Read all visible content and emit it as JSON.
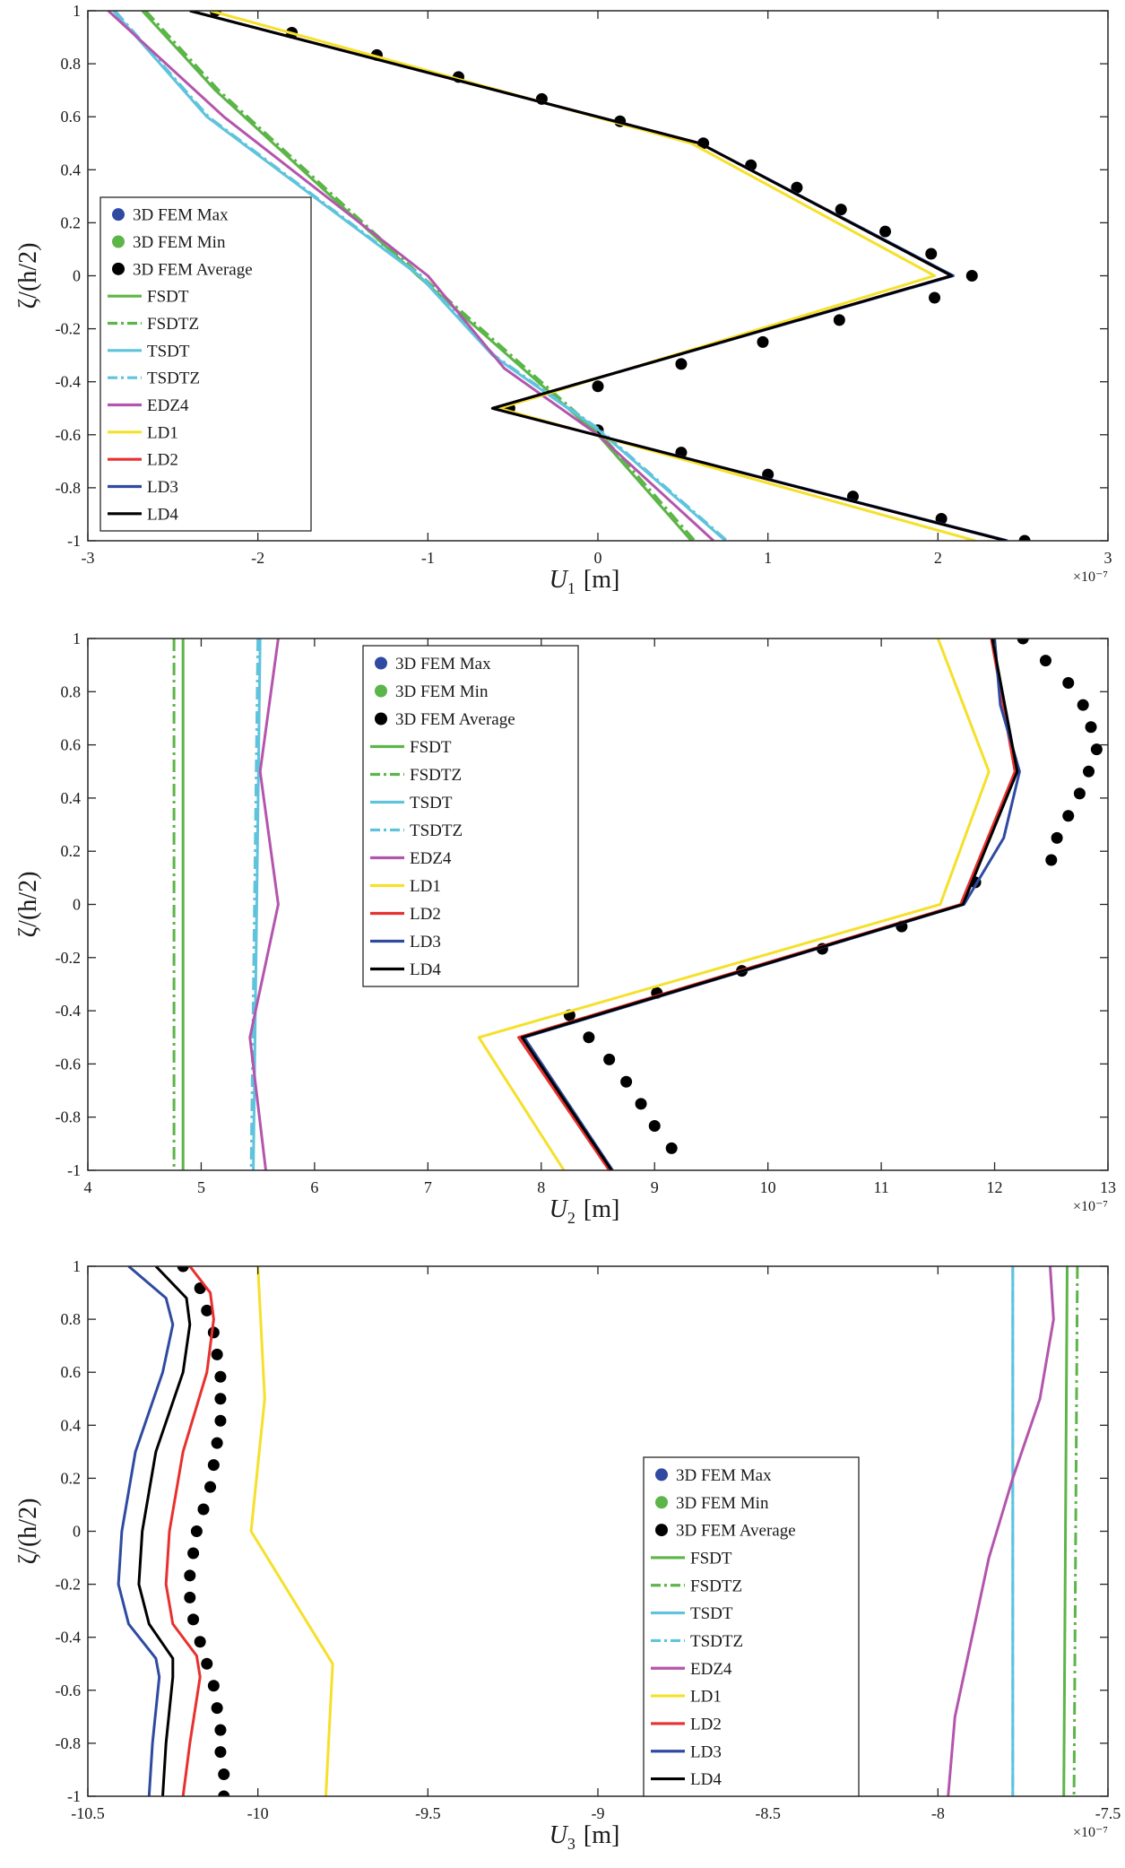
{
  "chart_data": [
    {
      "type": "line",
      "xlabel": "U1 [m]",
      "xlabel_main": "U",
      "xlabel_sub": "1",
      "xlabel_unit": "[m]",
      "ylabel": "ζ/(h/2)",
      "xlim": [
        -3,
        3
      ],
      "ylim": [
        -1,
        1
      ],
      "xticks": [
        -3,
        -2,
        -1,
        0,
        1,
        2,
        3
      ],
      "yticks": [
        1,
        0.8,
        0.6,
        0.4,
        0.2,
        0,
        -0.2,
        -0.4,
        -0.6,
        -0.8,
        -1
      ],
      "xtick_labels": [
        "-3",
        "-2",
        "-1",
        "0",
        "1",
        "2",
        "3"
      ],
      "ytick_labels": [
        "1",
        "0.8",
        "0.6",
        "0.4",
        "0.2",
        "0",
        "-0.2",
        "-0.4",
        "-0.6",
        "-0.8",
        "-1"
      ],
      "exponent_label": "×10⁻⁷",
      "grid": false,
      "legend_position": "middle-left",
      "legend": [
        "3D FEM Max",
        "3D FEM Min",
        "3D FEM Average",
        "FSDT",
        "FSDTZ",
        "TSDT",
        "TSDTZ",
        "EDZ4",
        "LD1",
        "LD2",
        "LD3",
        "LD4"
      ],
      "series": [
        {
          "name": "3D FEM Average",
          "style": "dots",
          "color": "#000000",
          "x": [
            -2.25,
            -1.8,
            -1.3,
            -0.82,
            -0.33,
            0.13,
            0.62,
            0.9,
            1.17,
            1.43,
            1.69,
            1.96,
            2.2,
            1.98,
            1.42,
            0.97,
            0.49,
            0.0,
            -0.52,
            0.0,
            0.49,
            1.0,
            1.5,
            2.02,
            2.51
          ],
          "y": [
            1.0,
            0.917,
            0.833,
            0.75,
            0.667,
            0.583,
            0.5,
            0.417,
            0.333,
            0.25,
            0.167,
            0.083,
            0.0,
            -0.083,
            -0.167,
            -0.25,
            -0.333,
            -0.417,
            -0.5,
            -0.583,
            -0.667,
            -0.75,
            -0.833,
            -0.917,
            -1.0
          ]
        },
        {
          "name": "FSDT",
          "style": "solid",
          "color": "#5cb548",
          "x": [
            -2.68,
            -2.25,
            -1.06,
            0.0,
            0.55
          ],
          "y": [
            1.0,
            0.7,
            0.0,
            -0.6,
            -1.0
          ]
        },
        {
          "name": "FSDTZ",
          "style": "dashdot",
          "color": "#5cb548",
          "x": [
            -2.66,
            -2.23,
            -1.04,
            0.02,
            0.57
          ],
          "y": [
            1.0,
            0.7,
            0.0,
            -0.6,
            -1.0
          ]
        },
        {
          "name": "TSDT",
          "style": "solid",
          "color": "#5fc3dc",
          "x": [
            -2.85,
            -2.3,
            -1.05,
            -0.62,
            0.0,
            0.75
          ],
          "y": [
            1.0,
            0.6,
            0.0,
            -0.3,
            -0.58,
            -1.0
          ]
        },
        {
          "name": "TSDTZ",
          "style": "dashdot",
          "color": "#5fc3dc",
          "x": [
            -2.84,
            -2.29,
            -1.04,
            -0.61,
            0.01,
            0.76
          ],
          "y": [
            1.0,
            0.6,
            0.0,
            -0.3,
            -0.58,
            -1.0
          ]
        },
        {
          "name": "EDZ4",
          "style": "solid",
          "color": "#b455ad",
          "x": [
            -2.88,
            -2.2,
            -1.0,
            -0.55,
            0.0,
            0.68
          ],
          "y": [
            1.0,
            0.6,
            0.0,
            -0.35,
            -0.6,
            -1.0
          ]
        },
        {
          "name": "LD1",
          "style": "solid",
          "color": "#f5e02a",
          "x": [
            -2.28,
            0.55,
            1.98,
            -0.58,
            2.22
          ],
          "y": [
            1.0,
            0.5,
            0.0,
            -0.5,
            -1.0
          ]
        },
        {
          "name": "LD2",
          "style": "solid",
          "color": "#e8312f",
          "x": [
            -2.4,
            0.6,
            2.08,
            -0.62,
            2.4
          ],
          "y": [
            1.0,
            0.5,
            0.0,
            -0.5,
            -1.0
          ]
        },
        {
          "name": "LD3",
          "style": "solid",
          "color": "#2f4aa0",
          "x": [
            -2.4,
            0.6,
            2.09,
            -0.62,
            2.41
          ],
          "y": [
            1.0,
            0.5,
            0.0,
            -0.5,
            -1.0
          ]
        },
        {
          "name": "LD4",
          "style": "solid",
          "color": "#000000",
          "x": [
            -2.4,
            0.6,
            2.08,
            -0.62,
            2.4
          ],
          "y": [
            1.0,
            0.5,
            0.0,
            -0.5,
            -1.0
          ]
        }
      ]
    },
    {
      "type": "line",
      "xlabel": "U2 [m]",
      "xlabel_main": "U",
      "xlabel_sub": "2",
      "xlabel_unit": "[m]",
      "ylabel": "ζ/(h/2)",
      "xlim": [
        4,
        13
      ],
      "ylim": [
        -1,
        1
      ],
      "xticks": [
        4,
        5,
        6,
        7,
        8,
        9,
        10,
        11,
        12,
        13
      ],
      "yticks": [
        1,
        0.8,
        0.6,
        0.4,
        0.2,
        0,
        -0.2,
        -0.4,
        -0.6,
        -0.8,
        -1
      ],
      "xtick_labels": [
        "4",
        "5",
        "6",
        "7",
        "8",
        "9",
        "10",
        "11",
        "12",
        "13"
      ],
      "ytick_labels": [
        "1",
        "0.8",
        "0.6",
        "0.4",
        "0.2",
        "0",
        "-0.2",
        "-0.4",
        "-0.6",
        "-0.8",
        "-1"
      ],
      "exponent_label": "×10⁻⁷",
      "grid": false,
      "legend_position": "top-center",
      "legend": [
        "3D FEM Max",
        "3D FEM Min",
        "3D FEM Average",
        "FSDT",
        "FSDTZ",
        "TSDT",
        "TSDTZ",
        "EDZ4",
        "LD1",
        "LD2",
        "LD3",
        "LD4"
      ],
      "series": [
        {
          "name": "3D FEM Average",
          "style": "dots",
          "color": "#000000",
          "x": [
            12.25,
            12.45,
            12.65,
            12.78,
            12.85,
            12.9,
            12.83,
            12.75,
            12.65,
            12.55,
            12.5,
            11.83,
            11.18,
            10.48,
            9.77,
            9.02,
            8.25,
            8.42,
            8.6,
            8.75,
            8.88,
            9.0,
            9.15
          ],
          "y": [
            1.0,
            0.917,
            0.833,
            0.75,
            0.667,
            0.583,
            0.5,
            0.417,
            0.333,
            0.25,
            0.167,
            0.083,
            -0.083,
            -0.167,
            -0.25,
            -0.333,
            -0.417,
            -0.5,
            -0.583,
            -0.667,
            -0.75,
            -0.833,
            -0.917
          ]
        },
        {
          "name": "FSDT",
          "style": "solid",
          "color": "#5cb548",
          "x": [
            4.84,
            4.84
          ],
          "y": [
            1.0,
            -1.0
          ]
        },
        {
          "name": "FSDTZ",
          "style": "dashdot",
          "color": "#5cb548",
          "x": [
            4.76,
            4.76
          ],
          "y": [
            1.0,
            -1.0
          ]
        },
        {
          "name": "TSDT",
          "style": "solid",
          "color": "#5fc3dc",
          "x": [
            5.52,
            5.46
          ],
          "y": [
            1.0,
            -1.0
          ]
        },
        {
          "name": "TSDTZ",
          "style": "dashdot",
          "color": "#5fc3dc",
          "x": [
            5.5,
            5.44
          ],
          "y": [
            1.0,
            -1.0
          ]
        },
        {
          "name": "EDZ4",
          "style": "solid",
          "color": "#b455ad",
          "x": [
            5.68,
            5.52,
            5.68,
            5.43,
            5.57
          ],
          "y": [
            1.0,
            0.5,
            0.0,
            -0.5,
            -1.0
          ]
        },
        {
          "name": "LD1",
          "style": "solid",
          "color": "#f5e02a",
          "x": [
            11.5,
            11.95,
            11.52,
            7.45,
            8.2
          ],
          "y": [
            1.0,
            0.5,
            0.0,
            -0.5,
            -1.0
          ]
        },
        {
          "name": "LD2",
          "style": "solid",
          "color": "#e8312f",
          "x": [
            11.97,
            12.18,
            11.7,
            7.8,
            8.6
          ],
          "y": [
            1.0,
            0.5,
            0.0,
            -0.5,
            -1.0
          ]
        },
        {
          "name": "LD3",
          "style": "solid",
          "color": "#2f4aa0",
          "x": [
            12.0,
            12.05,
            12.22,
            12.08,
            11.73,
            7.85,
            8.63
          ],
          "y": [
            1.0,
            0.75,
            0.5,
            0.25,
            0.0,
            -0.5,
            -1.0
          ]
        },
        {
          "name": "LD4",
          "style": "solid",
          "color": "#000000",
          "x": [
            11.98,
            12.2,
            11.72,
            7.83,
            8.62
          ],
          "y": [
            1.0,
            0.5,
            0.0,
            -0.5,
            -1.0
          ]
        }
      ]
    },
    {
      "type": "line",
      "xlabel": "U3 [m]",
      "xlabel_main": "U",
      "xlabel_sub": "3",
      "xlabel_unit": "[m]",
      "ylabel": "ζ/(h/2)",
      "xlim": [
        -10.5,
        -7.5
      ],
      "ylim": [
        -1,
        1
      ],
      "xticks": [
        -10.5,
        -10,
        -9.5,
        -9,
        -8.5,
        -8,
        -7.5
      ],
      "yticks": [
        1,
        0.8,
        0.6,
        0.4,
        0.2,
        0,
        -0.2,
        -0.4,
        -0.6,
        -0.8,
        -1
      ],
      "xtick_labels": [
        "-10.5",
        "-10",
        "-9.5",
        "-9",
        "-8.5",
        "-8",
        "-7.5"
      ],
      "ytick_labels": [
        "1",
        "0.8",
        "0.6",
        "0.4",
        "0.2",
        "0",
        "-0.2",
        "-0.4",
        "-0.6",
        "-0.8",
        "-1"
      ],
      "exponent_label": "×10⁻⁷",
      "grid": false,
      "legend_position": "center-right",
      "legend": [
        "3D FEM Max",
        "3D FEM Min",
        "3D FEM Average",
        "FSDT",
        "FSDTZ",
        "TSDT",
        "TSDTZ",
        "EDZ4",
        "LD1",
        "LD2",
        "LD3",
        "LD4"
      ],
      "series": [
        {
          "name": "3D FEM Average",
          "style": "dots",
          "color": "#000000",
          "x": [
            -10.22,
            -10.17,
            -10.15,
            -10.13,
            -10.12,
            -10.11,
            -10.11,
            -10.11,
            -10.12,
            -10.13,
            -10.14,
            -10.16,
            -10.18,
            -10.19,
            -10.2,
            -10.2,
            -10.19,
            -10.17,
            -10.15,
            -10.13,
            -10.12,
            -10.11,
            -10.11,
            -10.1,
            -10.1
          ],
          "y": [
            1.0,
            0.917,
            0.833,
            0.75,
            0.667,
            0.583,
            0.5,
            0.417,
            0.333,
            0.25,
            0.167,
            0.083,
            0.0,
            -0.083,
            -0.167,
            -0.25,
            -0.333,
            -0.417,
            -0.5,
            -0.583,
            -0.667,
            -0.75,
            -0.833,
            -0.917,
            -1.0
          ]
        },
        {
          "name": "FSDT",
          "style": "solid",
          "color": "#5cb548",
          "x": [
            -7.62,
            -7.63
          ],
          "y": [
            1.0,
            -1.0
          ]
        },
        {
          "name": "FSDTZ",
          "style": "dashdot",
          "color": "#5cb548",
          "x": [
            -7.59,
            -7.6
          ],
          "y": [
            1.0,
            -1.0
          ]
        },
        {
          "name": "TSDT",
          "style": "solid",
          "color": "#5fc3dc",
          "x": [
            -7.78,
            -7.78
          ],
          "y": [
            1.0,
            -1.0
          ]
        },
        {
          "name": "TSDTZ",
          "style": "dashdot",
          "color": "#5fc3dc",
          "x": [
            -7.78,
            -7.78
          ],
          "y": [
            1.0,
            -1.0
          ]
        },
        {
          "name": "EDZ4",
          "style": "solid",
          "color": "#b455ad",
          "x": [
            -7.67,
            -7.66,
            -7.7,
            -7.78,
            -7.85,
            -7.9,
            -7.95,
            -7.97
          ],
          "y": [
            1.0,
            0.8,
            0.5,
            0.2,
            -0.1,
            -0.4,
            -0.7,
            -1.0
          ]
        },
        {
          "name": "LD1",
          "style": "solid",
          "color": "#f5e02a",
          "x": [
            -10.0,
            -9.98,
            -10.02,
            -9.78,
            -9.8
          ],
          "y": [
            1.0,
            0.5,
            0.0,
            -0.5,
            -1.0
          ]
        },
        {
          "name": "LD2",
          "style": "solid",
          "color": "#e8312f",
          "x": [
            -10.2,
            -10.14,
            -10.13,
            -10.15,
            -10.22,
            -10.26,
            -10.27,
            -10.25,
            -10.18,
            -10.17,
            -10.2,
            -10.22
          ],
          "y": [
            1.0,
            0.9,
            0.8,
            0.6,
            0.3,
            0.0,
            -0.2,
            -0.35,
            -0.47,
            -0.55,
            -0.8,
            -1.0
          ]
        },
        {
          "name": "LD3",
          "style": "solid",
          "color": "#2f4aa0",
          "x": [
            -10.38,
            -10.27,
            -10.25,
            -10.28,
            -10.36,
            -10.4,
            -10.41,
            -10.38,
            -10.3,
            -10.29,
            -10.31,
            -10.32
          ],
          "y": [
            1.0,
            0.88,
            0.78,
            0.6,
            0.3,
            0.0,
            -0.2,
            -0.35,
            -0.48,
            -0.55,
            -0.8,
            -1.0
          ]
        },
        {
          "name": "LD4",
          "style": "solid",
          "color": "#000000",
          "x": [
            -10.3,
            -10.21,
            -10.2,
            -10.22,
            -10.3,
            -10.34,
            -10.35,
            -10.32,
            -10.25,
            -10.25,
            -10.27,
            -10.28
          ],
          "y": [
            1.0,
            0.88,
            0.78,
            0.6,
            0.3,
            0.0,
            -0.2,
            -0.35,
            -0.48,
            -0.55,
            -0.8,
            -1.0
          ]
        }
      ]
    }
  ]
}
